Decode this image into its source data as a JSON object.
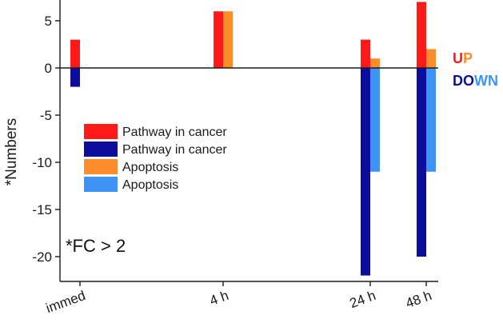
{
  "chart_data": {
    "type": "bar",
    "ylabel": "*Numbers",
    "ylim": [
      -23,
      7.2
    ],
    "yticks": [
      5,
      0,
      -5,
      -10,
      -15,
      -20
    ],
    "ytick_labels": [
      "5",
      "0",
      "-5",
      "-10",
      "-15",
      "-20"
    ],
    "categories": [
      "immed",
      "4 h",
      "24 h",
      "48 h"
    ],
    "series": [
      {
        "name": "Pathway in cancer",
        "direction": "up",
        "color": "#ff1a1a",
        "values": [
          3,
          6,
          3,
          7
        ]
      },
      {
        "name": "Pathway in cancer",
        "direction": "down",
        "color": "#0d0d9c",
        "values": [
          -2,
          0,
          -22,
          -20
        ]
      },
      {
        "name": "Apoptosis",
        "direction": "up",
        "color": "#ff8c2a",
        "values": [
          0,
          6,
          1,
          2
        ]
      },
      {
        "name": "Apoptosis",
        "direction": "down",
        "color": "#3d94f5",
        "values": [
          0,
          0,
          -11,
          -11
        ]
      }
    ],
    "legend_placement": "center-left",
    "annotation": "*FC > 2",
    "up_label": {
      "letters": [
        "U",
        "P"
      ],
      "colors": [
        "#ff1a1a",
        "#ff8c2a"
      ]
    },
    "down_label": {
      "letters": [
        "DO",
        "WN"
      ],
      "colors": [
        "#0d0d9c",
        "#3d94f5"
      ]
    },
    "grid": false
  }
}
